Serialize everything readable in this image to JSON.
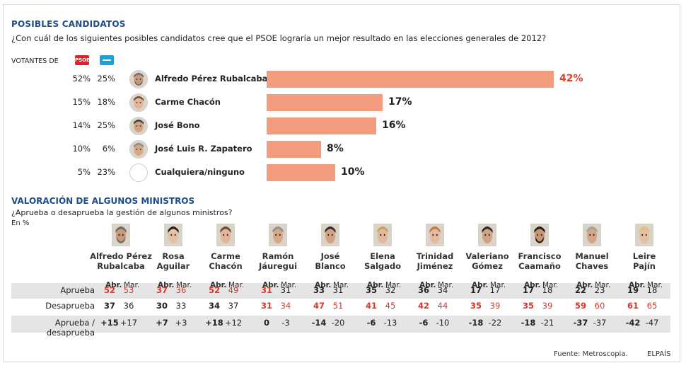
{
  "section1": {
    "title": "POSIBLES CANDIDATOS",
    "question": "¿Con cuál de los siguientes posibles candidatos cree que el PSOE  lograría un mejor resultado en las elecciones generales de 2012?",
    "voters_label": "VOTANTES DE",
    "psoe_logo_text": "PSOE"
  },
  "chart_data": [
    {
      "type": "bar",
      "orientation": "horizontal",
      "title": "POSIBLES CANDIDATOS",
      "categories": [
        "Alfredo Pérez Rubalcaba",
        "Carme Chacón",
        "José Bono",
        "José Luis R. Zapatero",
        "Cualquiera/ninguno"
      ],
      "values": [
        42,
        17,
        16,
        8,
        10
      ],
      "value_labels": [
        "42%",
        "17%",
        "16%",
        "8%",
        "10%"
      ],
      "psoe_voters": [
        "52%",
        "15%",
        "14%",
        "10%",
        "5%"
      ],
      "pp_voters": [
        "25%",
        "18%",
        "25%",
        "6%",
        "23%"
      ],
      "highlight_index": 0,
      "xlim": [
        0,
        42
      ],
      "bar_color": "#f39c7e",
      "highlight_color": "#e0402b"
    },
    {
      "type": "table",
      "title": "VALORACIÓN DE ALGUNOS MINISTROS",
      "subtitle": "¿Aprueba o desaprueba la gestión de algunos ministros?",
      "unit": "En %",
      "col_headers": [
        "Abr.",
        "Mar."
      ],
      "ministers": [
        [
          "Alfredo Pérez",
          "Rubalcaba"
        ],
        [
          "Rosa",
          "Aguilar"
        ],
        [
          "Carme",
          "Chacón"
        ],
        [
          "Ramón",
          "Jáuregui"
        ],
        [
          "José",
          "Blanco"
        ],
        [
          "Elena",
          "Salgado"
        ],
        [
          "Trinidad",
          "Jiménez"
        ],
        [
          "Valeriano",
          "Gómez"
        ],
        [
          "Francisco",
          "Caamaño"
        ],
        [
          "Manuel",
          "Chaves"
        ],
        [
          "Leire",
          "Pajín"
        ]
      ],
      "rows": [
        {
          "label": "Aprueba",
          "abr": [
            "52",
            "37",
            "52",
            "31",
            "33",
            "35",
            "36",
            "17",
            "17",
            "22",
            "19"
          ],
          "mar": [
            "53",
            "36",
            "49",
            "31",
            "31",
            "32",
            "34",
            "17",
            "18",
            "23",
            "18"
          ],
          "red_abr": [
            true,
            true,
            true,
            true,
            false,
            false,
            false,
            false,
            false,
            false,
            false
          ],
          "red_mar": [
            true,
            true,
            true,
            false,
            false,
            false,
            false,
            false,
            false,
            false,
            false
          ],
          "shaded": true
        },
        {
          "label": "Desaprueba",
          "abr": [
            "37",
            "30",
            "34",
            "31",
            "47",
            "41",
            "42",
            "35",
            "35",
            "59",
            "61"
          ],
          "mar": [
            "36",
            "33",
            "37",
            "34",
            "51",
            "45",
            "44",
            "39",
            "39",
            "60",
            "65"
          ],
          "red_abr": [
            false,
            false,
            false,
            true,
            true,
            true,
            true,
            true,
            true,
            true,
            true
          ],
          "red_mar": [
            false,
            false,
            false,
            true,
            true,
            true,
            true,
            true,
            true,
            true,
            true
          ],
          "shaded": false
        },
        {
          "label": "Aprueba / desaprueba",
          "abr": [
            "+15",
            "+7",
            "+18",
            "0",
            "-14",
            "-6",
            "-6",
            "-18",
            "-18",
            "-37",
            "-42"
          ],
          "mar": [
            "+17",
            "+3",
            "+12",
            "-3",
            "-20",
            "-13",
            "-10",
            "-22",
            "-21",
            "-37",
            "-47"
          ],
          "red_abr": [
            false,
            false,
            false,
            false,
            false,
            false,
            false,
            false,
            false,
            false,
            false
          ],
          "red_mar": [
            false,
            false,
            false,
            false,
            false,
            false,
            false,
            false,
            false,
            false,
            false
          ],
          "shaded": true
        }
      ]
    }
  ],
  "section2": {
    "title": "VALORACIÓN DE ALGUNOS MINISTROS",
    "question": "¿Aprueba o desaprueba la gestión de algunos ministros?",
    "unit": "En %"
  },
  "footer": {
    "source": "Fuente: Metroscopia.",
    "brand": "ELPAÍS"
  },
  "colors": {
    "title_blue": "#1c4e8b",
    "bar": "#f39c7e",
    "red": "#d8372a",
    "row_shade": "#e5e5e5"
  }
}
